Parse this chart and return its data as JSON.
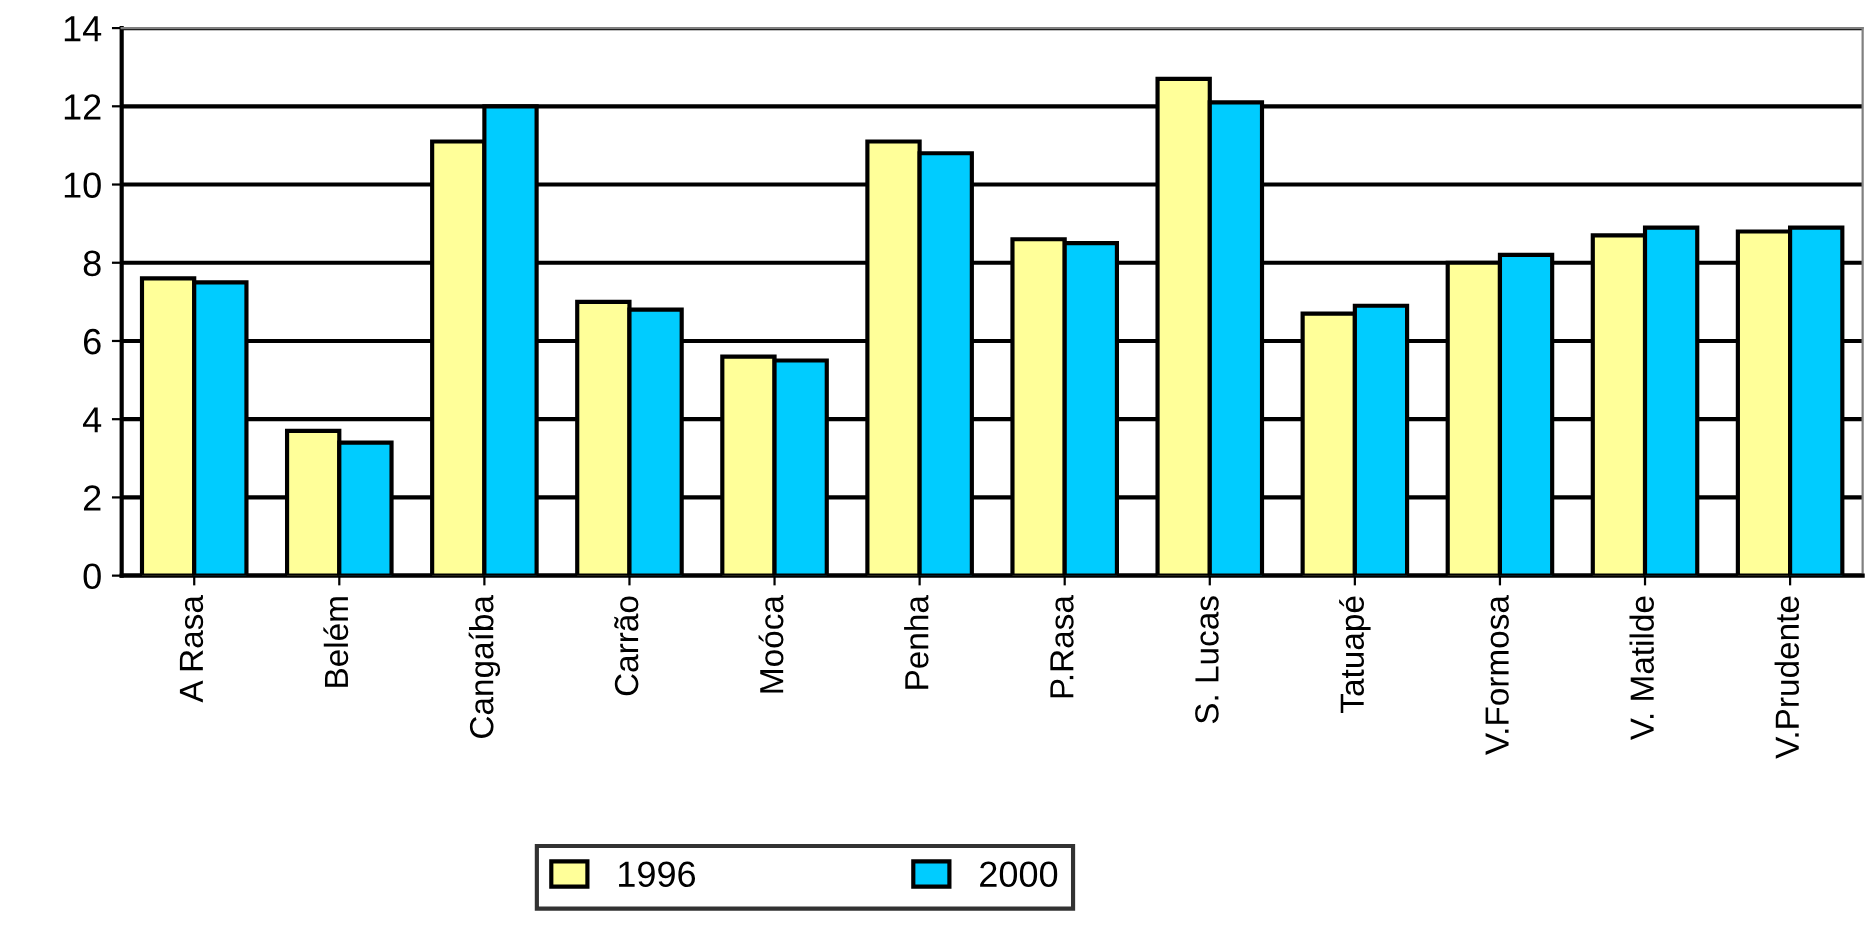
{
  "chart_data": {
    "type": "bar",
    "categories": [
      "A Rasa",
      "Belém",
      "Cangaíba",
      "Carrão",
      "Moóca",
      "Penha",
      "P.Rasa",
      "S. Lucas",
      "Tatuapé",
      "V.Formosa",
      "V. Matilde",
      "V.Prudente"
    ],
    "series": [
      {
        "name": "1996",
        "color": "#ffff99",
        "values": [
          7.6,
          3.7,
          11.1,
          7.0,
          5.6,
          11.1,
          8.6,
          12.7,
          6.7,
          8.0,
          8.7,
          8.8
        ]
      },
      {
        "name": "2000",
        "color": "#00ccff",
        "values": [
          7.5,
          3.4,
          12.0,
          6.8,
          5.5,
          10.8,
          8.5,
          12.1,
          6.9,
          8.2,
          8.9,
          8.9
        ]
      }
    ],
    "ylim": [
      0,
      14
    ],
    "yticks": [
      0,
      2,
      4,
      6,
      8,
      10,
      12,
      14
    ],
    "grid": "y",
    "legend": "bottom"
  }
}
